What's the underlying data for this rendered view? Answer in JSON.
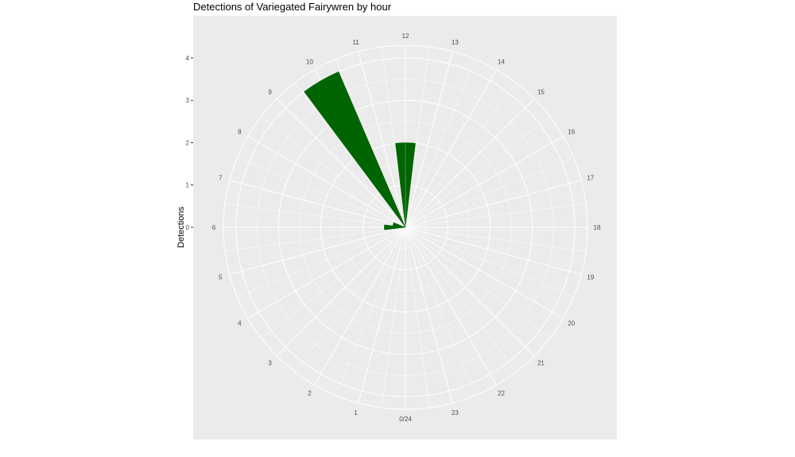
{
  "chart_data": {
    "type": "bar",
    "coord": "polar",
    "title": "Detections of Variegated Fairywren by hour",
    "xlabel": "",
    "ylabel": "Detections",
    "categories": [
      "0/24",
      "1",
      "2",
      "3",
      "4",
      "5",
      "6",
      "7",
      "8",
      "9",
      "10",
      "11",
      "12",
      "13",
      "14",
      "15",
      "16",
      "17",
      "18",
      "19",
      "20",
      "21",
      "22",
      "23"
    ],
    "values": [
      0,
      0,
      0,
      0,
      0,
      0,
      0.5,
      0.3,
      0,
      0,
      4,
      0,
      2,
      0,
      0,
      0,
      0,
      0,
      0,
      0,
      0,
      0,
      0,
      0
    ],
    "y_ticks": [
      "0",
      "1",
      "2",
      "3",
      "4"
    ],
    "ylim": [
      0,
      4.3
    ],
    "grid": true,
    "legend": "none",
    "colors": {
      "bar": "#006400",
      "panel": "#ebebeb",
      "grid": "#ffffff",
      "text": "#4d4d4d"
    }
  }
}
